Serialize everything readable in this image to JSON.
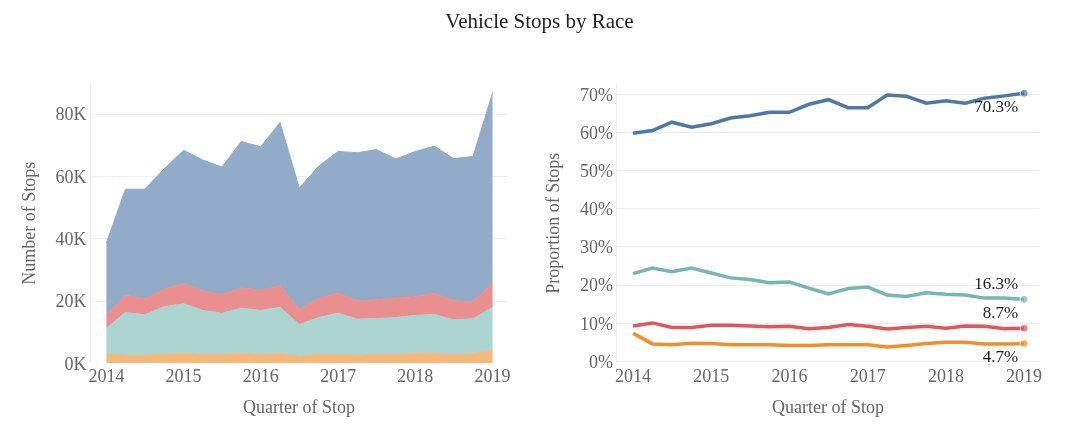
{
  "chart_data": [
    {
      "type": "area",
      "title": "Vehicle Stops by Race",
      "xlabel": "Quarter of Stop",
      "ylabel": "Number of Stops",
      "stacked": true,
      "grid": "y",
      "x": [
        "2014-01-01",
        "2014-04-01",
        "2014-07-01",
        "2014-10-01",
        "2015-01-01",
        "2015-04-01",
        "2015-07-01",
        "2015-10-01",
        "2016-01-01",
        "2016-04-01",
        "2016-07-01",
        "2016-10-01",
        "2017-01-01",
        "2017-04-01",
        "2017-07-01",
        "2017-10-01",
        "2018-01-01",
        "2018-04-01",
        "2018-07-01",
        "2018-10-01",
        "2019-01-01"
      ],
      "xlim": [
        "2013-10-20",
        "2019-03-10"
      ],
      "xticks": [
        "2014",
        "2015",
        "2016",
        "2017",
        "2018",
        "2019"
      ],
      "ylim": [
        0,
        90
      ],
      "yticks": [
        {
          "value": 0,
          "label": "0K"
        },
        {
          "value": 20,
          "label": "20K"
        },
        {
          "value": 40,
          "label": "40K"
        },
        {
          "value": 60,
          "label": "60K"
        },
        {
          "value": 80,
          "label": "80K"
        }
      ],
      "series": [
        {
          "color": "#f5b87a",
          "values": [
            2.9,
            2.6,
            2.6,
            2.9,
            3.1,
            2.9,
            2.9,
            3.1,
            2.9,
            3.1,
            2.3,
            2.8,
            2.8,
            2.6,
            2.8,
            2.9,
            3.1,
            3.3,
            2.8,
            3.1,
            4.2
          ]
        },
        {
          "color": "#acd4d1",
          "values": [
            8.4,
            13.7,
            13.0,
            15.3,
            16.0,
            14.1,
            13.2,
            14.6,
            14.1,
            14.9,
            10.2,
            11.9,
            13.3,
            11.6,
            11.6,
            11.8,
            12.3,
            12.4,
            11.2,
            11.2,
            13.8
          ]
        },
        {
          "color": "#ea8f8f",
          "values": [
            4.1,
            5.6,
            5.1,
            5.6,
            6.5,
            6.3,
            6.0,
            6.6,
            6.5,
            7.0,
            4.9,
            6.2,
            6.5,
            5.9,
            6.0,
            6.3,
            6.0,
            6.8,
            6.1,
            5.6,
            7.6
          ]
        },
        {
          "color": "#91abc9",
          "values": [
            23.3,
            34.0,
            35.2,
            38.6,
            42.8,
            42.0,
            40.9,
            46.9,
            46.0,
            52.3,
            38.9,
            42.4,
            45.4,
            47.5,
            48.2,
            44.6,
            46.6,
            47.2,
            45.6,
            46.5,
            61.2
          ]
        }
      ]
    },
    {
      "type": "line",
      "xlabel": "Quarter of Stop",
      "ylabel": "Proportion of Stops",
      "grid": "y",
      "line_style": "solid",
      "x": [
        "2014-01-01",
        "2014-04-01",
        "2014-07-01",
        "2014-10-01",
        "2015-01-01",
        "2015-04-01",
        "2015-07-01",
        "2015-10-01",
        "2016-01-01",
        "2016-04-01",
        "2016-07-01",
        "2016-10-01",
        "2017-01-01",
        "2017-04-01",
        "2017-07-01",
        "2017-10-01",
        "2018-01-01",
        "2018-04-01",
        "2018-07-01",
        "2018-10-01",
        "2019-01-01"
      ],
      "xlim": [
        "2013-10-20",
        "2019-03-10"
      ],
      "xticks": [
        "2014",
        "2015",
        "2016",
        "2017",
        "2018",
        "2019"
      ],
      "ylim": [
        -0.5,
        73
      ],
      "yticks": [
        {
          "value": 0,
          "label": "0%"
        },
        {
          "value": 10,
          "label": "10%"
        },
        {
          "value": 20,
          "label": "20%"
        },
        {
          "value": 30,
          "label": "30%"
        },
        {
          "value": 40,
          "label": "40%"
        },
        {
          "value": 50,
          "label": "50%"
        },
        {
          "value": 60,
          "label": "60%"
        },
        {
          "value": 70,
          "label": "70%"
        }
      ],
      "series": [
        {
          "color": "#f28e2b",
          "values": [
            7.4,
            4.6,
            4.4,
            4.8,
            4.7,
            4.4,
            4.4,
            4.4,
            4.2,
            4.2,
            4.4,
            4.4,
            4.4,
            3.8,
            4.2,
            4.7,
            5.0,
            5.0,
            4.6,
            4.6,
            4.7
          ],
          "value_labels": [
            null,
            null,
            null,
            null,
            null,
            null,
            null,
            null,
            null,
            null,
            null,
            null,
            null,
            null,
            null,
            null,
            null,
            null,
            null,
            null,
            "4.7%"
          ]
        },
        {
          "color": "#76b7b2",
          "values": [
            23.0,
            24.5,
            23.5,
            24.5,
            23.2,
            21.9,
            21.5,
            20.6,
            20.8,
            19.2,
            17.7,
            19.1,
            19.5,
            17.4,
            17.0,
            18.0,
            17.6,
            17.4,
            16.6,
            16.6,
            16.3
          ],
          "value_labels": [
            null,
            null,
            null,
            null,
            null,
            null,
            null,
            null,
            null,
            null,
            null,
            null,
            null,
            null,
            null,
            null,
            null,
            null,
            null,
            null,
            "16.3%"
          ]
        },
        {
          "color": "#e15759",
          "values": [
            9.3,
            10.1,
            8.9,
            8.9,
            9.5,
            9.5,
            9.3,
            9.1,
            9.2,
            8.6,
            8.9,
            9.7,
            9.2,
            8.5,
            8.9,
            9.2,
            8.7,
            9.3,
            9.2,
            8.6,
            8.7
          ],
          "value_labels": [
            null,
            null,
            null,
            null,
            null,
            null,
            null,
            null,
            null,
            null,
            null,
            null,
            null,
            null,
            null,
            null,
            null,
            null,
            null,
            null,
            "8.7%"
          ]
        },
        {
          "color": "#4e79a7",
          "values": [
            59.8,
            60.5,
            62.7,
            61.4,
            62.3,
            63.8,
            64.4,
            65.3,
            65.3,
            67.4,
            68.6,
            66.5,
            66.5,
            69.8,
            69.5,
            67.7,
            68.3,
            67.7,
            69.0,
            69.6,
            70.3
          ],
          "value_labels": [
            null,
            null,
            null,
            null,
            null,
            null,
            null,
            null,
            null,
            null,
            null,
            null,
            null,
            null,
            null,
            null,
            null,
            null,
            null,
            null,
            "70.3%"
          ]
        }
      ]
    }
  ]
}
